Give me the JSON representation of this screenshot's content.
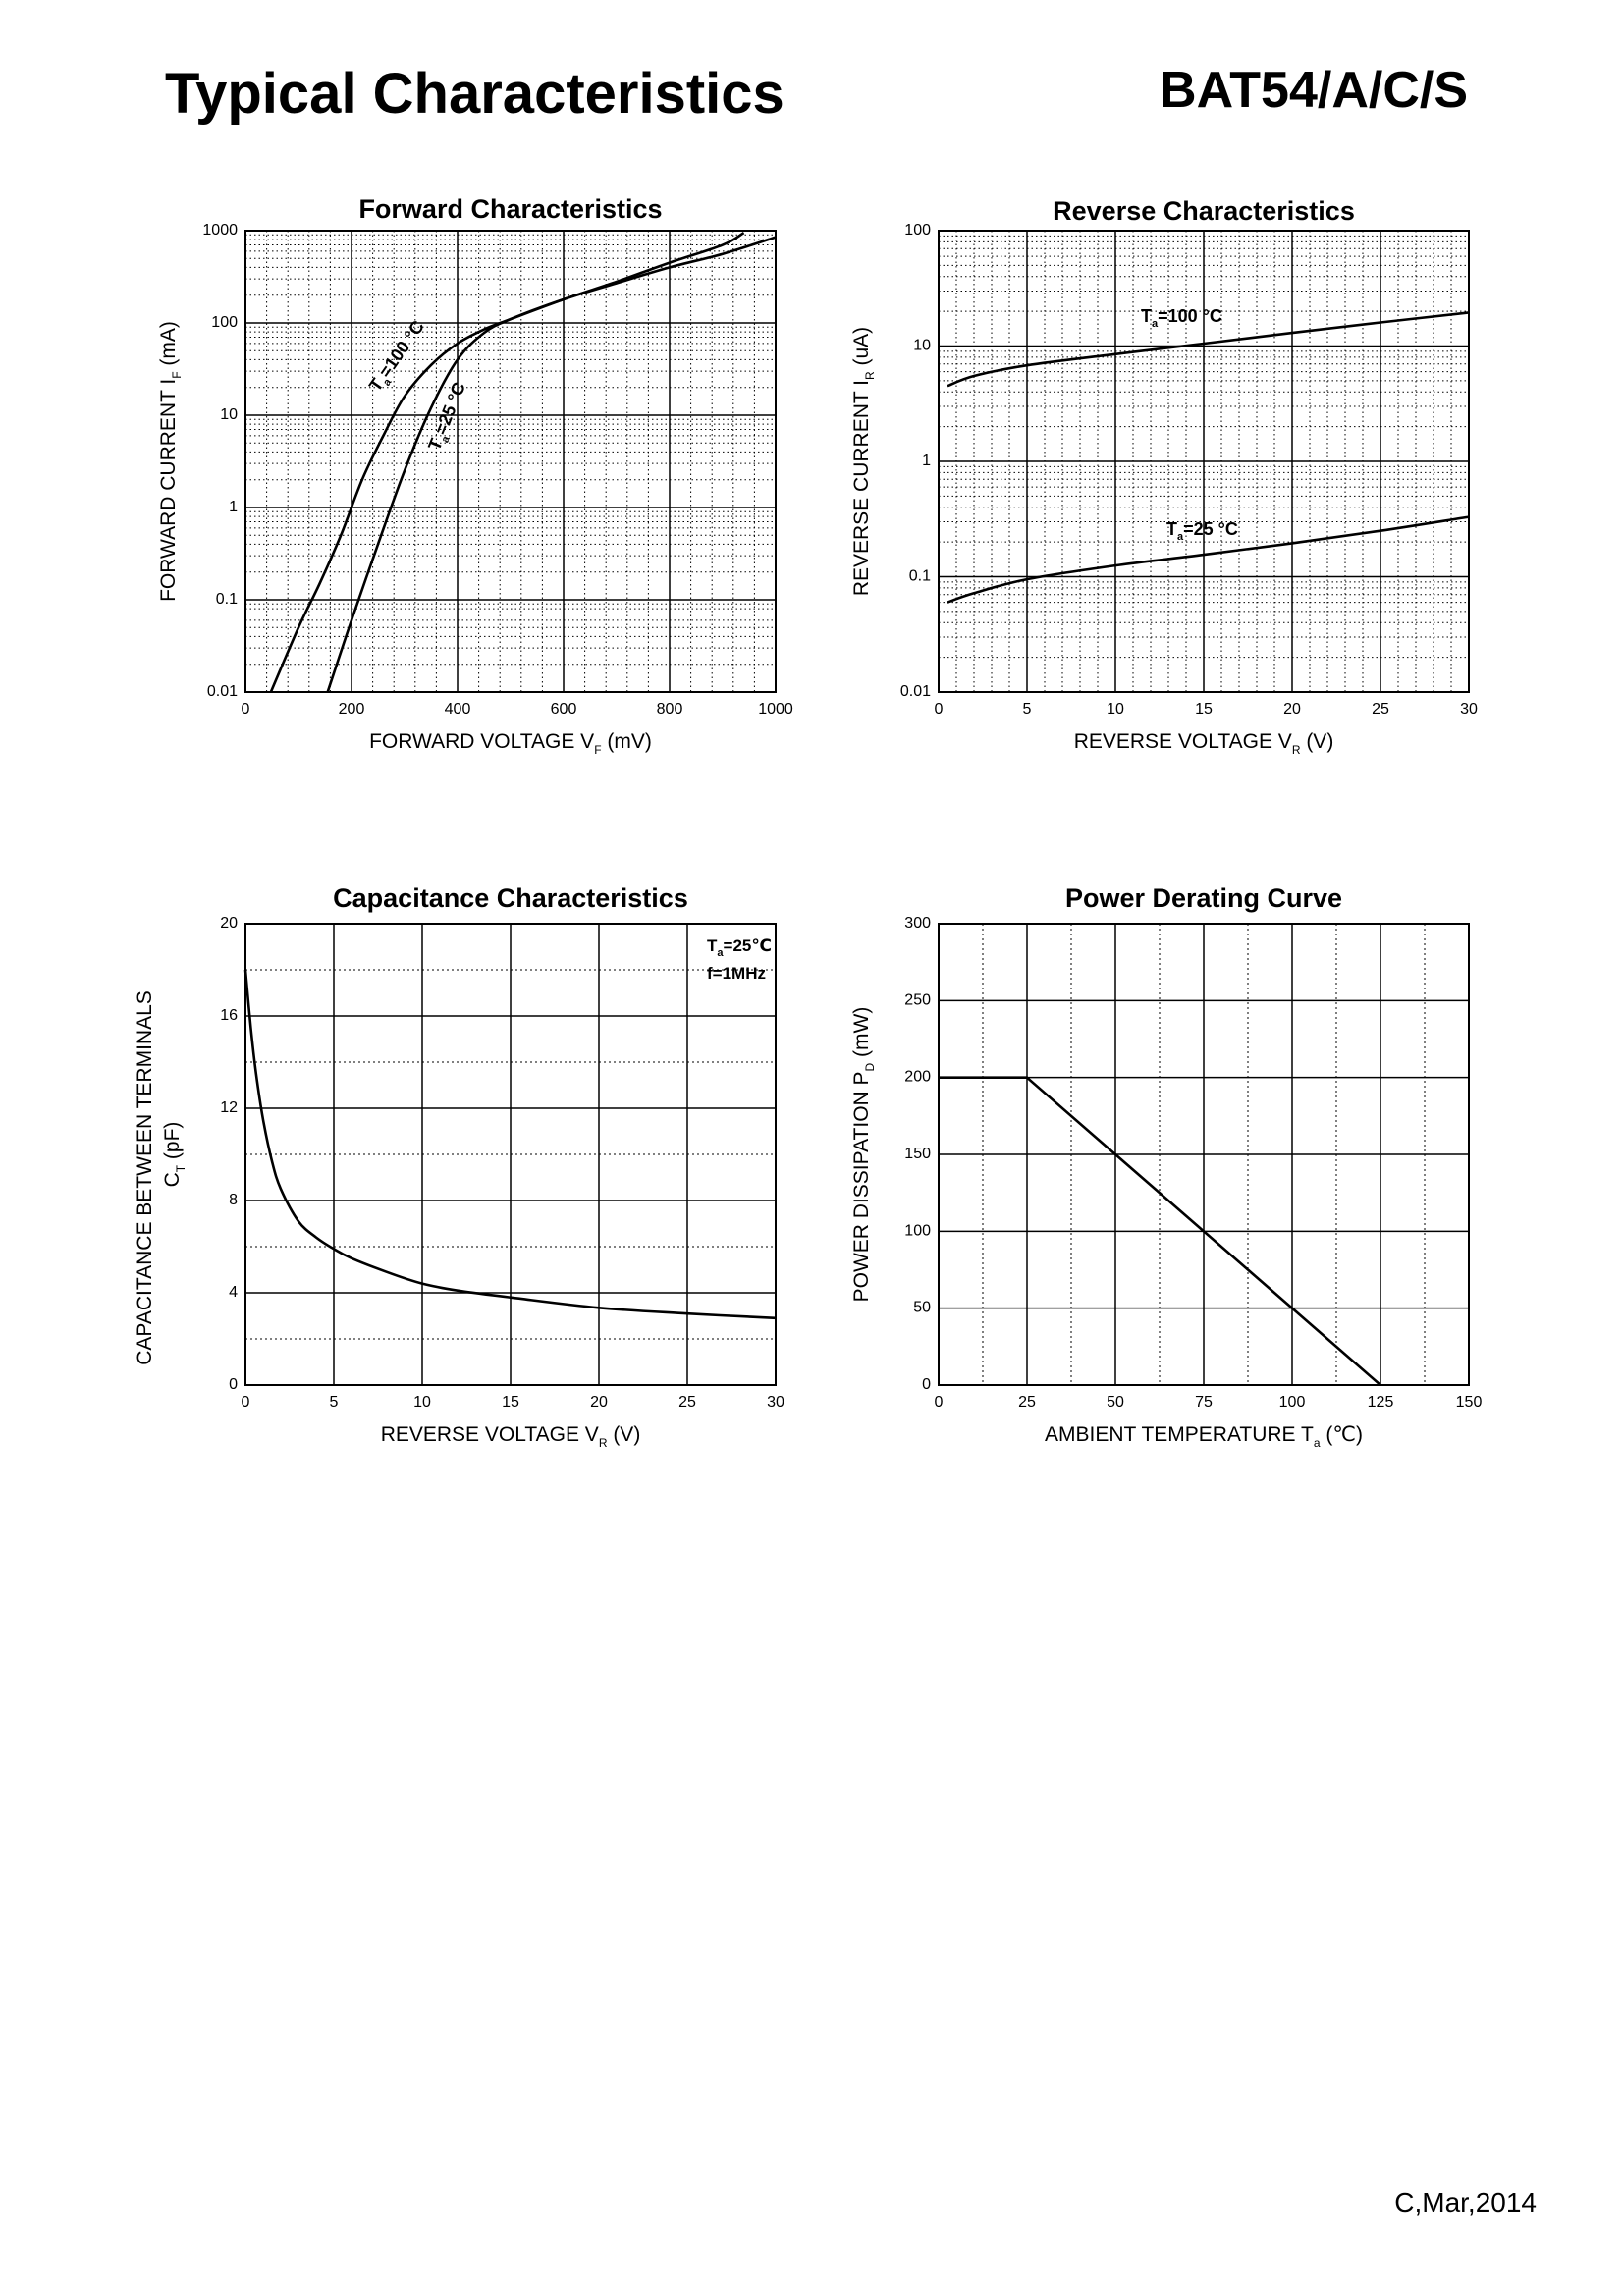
{
  "header": {
    "title": "Typical Characteristics",
    "part_number": "BAT54/A/C/S"
  },
  "footer": {
    "revision": "C,Mar,2014"
  },
  "chart_data": [
    {
      "type": "line",
      "title": "Forward    Characteristics",
      "xlabel": "FORWARD VOLTAGE",
      "xlabel_symbol": "V",
      "xlabel_sub": "F",
      "xlabel_unit": "(mV)",
      "ylabel": "FORWARD CURRENT",
      "ylabel_symbol": "I",
      "ylabel_sub": "F",
      "ylabel_unit": "(mA)",
      "xlim": [
        0,
        1000
      ],
      "ylim": [
        0.01,
        1000
      ],
      "yscale": "log",
      "xticks": [
        0,
        200,
        400,
        600,
        800,
        1000
      ],
      "xtick_labels": [
        "0",
        "200",
        "400",
        "600",
        "800",
        "1000"
      ],
      "yticks": [
        0.01,
        0.1,
        1,
        10,
        100,
        1000
      ],
      "ytick_labels": [
        "0.01",
        "0.1",
        "1",
        "10",
        "100",
        "1000"
      ],
      "grid": "dense",
      "series": [
        {
          "name": "Ta=100°C",
          "label_parts": [
            "T",
            "a",
            "=100 °C"
          ],
          "x": [
            48,
            100,
            140,
            180,
            220,
            260,
            300,
            350,
            400,
            450,
            500,
            600,
            700,
            800,
            900,
            940
          ],
          "y": [
            0.01,
            0.05,
            0.15,
            0.5,
            2,
            6,
            16,
            35,
            60,
            85,
            110,
            180,
            280,
            450,
            700,
            950
          ]
        },
        {
          "name": "Ta=25°C",
          "label_parts": [
            "T",
            "a",
            "=25 °C"
          ],
          "x": [
            155,
            200,
            250,
            300,
            350,
            400,
            450,
            500,
            600,
            700,
            800,
            900,
            1000
          ],
          "y": [
            0.01,
            0.06,
            0.4,
            2.5,
            12,
            40,
            78,
            110,
            180,
            270,
            400,
            560,
            850
          ]
        }
      ]
    },
    {
      "type": "line",
      "title": "Reverse    Characteristics",
      "xlabel": "REVERSE VOLTAGE",
      "xlabel_symbol": "V",
      "xlabel_sub": "R",
      "xlabel_unit": "(V)",
      "ylabel": "REVERSE CURRENT",
      "ylabel_symbol": "I",
      "ylabel_sub": "R",
      "ylabel_unit": "(uA)",
      "xlim": [
        0,
        30
      ],
      "ylim": [
        0.01,
        100
      ],
      "yscale": "log",
      "xticks": [
        0,
        5,
        10,
        15,
        20,
        25,
        30
      ],
      "xtick_labels": [
        "0",
        "5",
        "10",
        "15",
        "20",
        "25",
        "30"
      ],
      "yticks": [
        0.01,
        0.1,
        1,
        10,
        100
      ],
      "ytick_labels": [
        "0.01",
        "0.1",
        "1",
        "10",
        "100"
      ],
      "grid": "dense",
      "series": [
        {
          "name": "Ta=100°C",
          "label_parts": [
            "T",
            "a",
            "=100 °C"
          ],
          "x": [
            0.5,
            2,
            5,
            10,
            15,
            20,
            25,
            30
          ],
          "y": [
            4.5,
            5.5,
            6.8,
            8.5,
            10.5,
            13,
            16,
            19.5
          ]
        },
        {
          "name": "Ta=25°C",
          "label_parts": [
            "T",
            "a",
            "=25 °C"
          ],
          "x": [
            0.5,
            2,
            5,
            10,
            15,
            20,
            25,
            30
          ],
          "y": [
            0.06,
            0.072,
            0.095,
            0.125,
            0.155,
            0.195,
            0.25,
            0.33
          ]
        }
      ]
    },
    {
      "type": "line",
      "title": "Capacitance Characteristics",
      "xlabel": "REVERSE VOLTAGE",
      "xlabel_symbol": "V",
      "xlabel_sub": "R",
      "xlabel_unit": "(V)",
      "ylabel": "CAPACITANCE BETWEEN TERMINALS",
      "ylabel_symbol": "C",
      "ylabel_sub": "T",
      "ylabel_unit": "(pF)",
      "xlim": [
        0,
        30
      ],
      "ylim": [
        0,
        20
      ],
      "yscale": "linear",
      "xticks": [
        0,
        5,
        10,
        15,
        20,
        25,
        30
      ],
      "xtick_labels": [
        "0",
        "5",
        "10",
        "15",
        "20",
        "25",
        "30"
      ],
      "yticks": [
        0,
        4,
        8,
        12,
        16,
        20
      ],
      "ytick_labels": [
        "0",
        "4",
        "8",
        "12",
        "16",
        "20"
      ],
      "minor_yticks": [
        2,
        6,
        10,
        14,
        18
      ],
      "grid": "major",
      "conditions": [
        "T",
        "a",
        "=25℃",
        "f=1MHz"
      ],
      "series": [
        {
          "name": "CT",
          "x": [
            0,
            0.3,
            0.6,
            1,
            1.5,
            2,
            3,
            4,
            5,
            6,
            8,
            10,
            12,
            15,
            20,
            25,
            30
          ],
          "y": [
            18,
            15.5,
            13.5,
            11.5,
            9.7,
            8.5,
            7.1,
            6.4,
            5.9,
            5.5,
            4.9,
            4.4,
            4.1,
            3.8,
            3.35,
            3.1,
            2.9
          ]
        }
      ]
    },
    {
      "type": "line",
      "title": "Power Derating Curve",
      "xlabel": "AMBIENT TEMPERATURE",
      "xlabel_symbol": "T",
      "xlabel_sub": "a",
      "xlabel_unit": "(℃)",
      "ylabel": "POWER DISSIPATION",
      "ylabel_symbol": "P",
      "ylabel_sub": "D",
      "ylabel_unit": "(mW)",
      "xlim": [
        0,
        150
      ],
      "ylim": [
        0,
        300
      ],
      "yscale": "linear",
      "xticks": [
        0,
        25,
        50,
        75,
        100,
        125,
        150
      ],
      "xtick_labels": [
        "0",
        "25",
        "50",
        "75",
        "100",
        "125",
        "150"
      ],
      "minor_xticks": [
        12.5,
        37.5,
        62.5,
        87.5,
        112.5,
        137.5
      ],
      "yticks": [
        0,
        50,
        100,
        150,
        200,
        250,
        300
      ],
      "ytick_labels": [
        "0",
        "50",
        "100",
        "150",
        "200",
        "250",
        "300"
      ],
      "grid": "major",
      "series": [
        {
          "name": "PD",
          "x": [
            0,
            25,
            125
          ],
          "y": [
            200,
            200,
            0
          ]
        }
      ]
    }
  ]
}
